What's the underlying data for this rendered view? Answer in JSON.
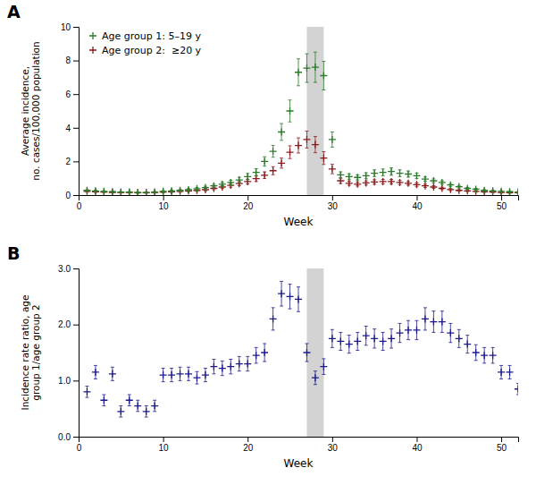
{
  "chart_data": [
    {
      "type": "scatter",
      "title": "A",
      "x_label": "Week",
      "y_label": "Average incidence,\nno. cases/100,000 population",
      "xlim": [
        0,
        52
      ],
      "xticks": [
        0,
        10,
        20,
        30,
        40,
        50
      ],
      "ylim": [
        0,
        10
      ],
      "yticks": [
        0,
        2,
        4,
        6,
        8,
        10
      ],
      "legend": "upper left",
      "span": {
        "x": [
          27,
          29
        ],
        "color": "#c8c8c8"
      },
      "x": [
        1,
        2,
        3,
        4,
        5,
        6,
        7,
        8,
        9,
        10,
        11,
        12,
        13,
        14,
        15,
        16,
        17,
        18,
        19,
        20,
        21,
        22,
        23,
        24,
        25,
        26,
        27,
        28,
        29,
        30,
        31,
        32,
        33,
        34,
        35,
        36,
        37,
        38,
        39,
        40,
        41,
        42,
        43,
        44,
        45,
        46,
        47,
        48,
        49,
        50,
        51,
        52
      ],
      "series": [
        {
          "name": "Age group 1: 5–19 y",
          "color": "#2a7a2a",
          "marker": "plus",
          "values": [
            0.28,
            0.25,
            0.22,
            0.2,
            0.18,
            0.18,
            0.15,
            0.15,
            0.18,
            0.22,
            0.25,
            0.28,
            0.32,
            0.38,
            0.45,
            0.55,
            0.65,
            0.75,
            0.9,
            1.1,
            1.35,
            2.0,
            2.6,
            3.75,
            5.0,
            7.3,
            7.55,
            7.6,
            7.1,
            3.3,
            1.2,
            1.1,
            1.05,
            1.15,
            1.3,
            1.35,
            1.4,
            1.3,
            1.25,
            1.15,
            0.95,
            0.85,
            0.75,
            0.6,
            0.5,
            0.4,
            0.35,
            0.28,
            0.25,
            0.22,
            0.2,
            0.18
          ],
          "errors": [
            0.04,
            0.04,
            0.04,
            0.04,
            0.03,
            0.03,
            0.03,
            0.03,
            0.04,
            0.04,
            0.05,
            0.05,
            0.06,
            0.07,
            0.08,
            0.09,
            0.11,
            0.13,
            0.15,
            0.18,
            0.22,
            0.28,
            0.35,
            0.5,
            0.65,
            0.8,
            0.85,
            0.9,
            0.85,
            0.45,
            0.18,
            0.16,
            0.15,
            0.18,
            0.2,
            0.2,
            0.22,
            0.2,
            0.18,
            0.16,
            0.13,
            0.11,
            0.1,
            0.08,
            0.07,
            0.06,
            0.05,
            0.04,
            0.04,
            0.04,
            0.03,
            0.03
          ]
        },
        {
          "name": "Age group 2:  ≥20 y",
          "color": "#8b1a1a",
          "marker": "plus",
          "values": [
            0.22,
            0.2,
            0.18,
            0.16,
            0.15,
            0.15,
            0.14,
            0.14,
            0.15,
            0.18,
            0.2,
            0.22,
            0.25,
            0.28,
            0.32,
            0.4,
            0.48,
            0.58,
            0.68,
            0.8,
            0.98,
            1.18,
            1.45,
            1.9,
            2.55,
            2.95,
            3.3,
            3.0,
            2.2,
            1.55,
            0.85,
            0.7,
            0.65,
            0.72,
            0.78,
            0.8,
            0.8,
            0.75,
            0.7,
            0.62,
            0.55,
            0.48,
            0.4,
            0.33,
            0.28,
            0.25,
            0.22,
            0.2,
            0.18,
            0.15,
            0.14,
            0.14
          ],
          "errors": [
            0.04,
            0.04,
            0.03,
            0.03,
            0.03,
            0.03,
            0.03,
            0.03,
            0.03,
            0.04,
            0.04,
            0.05,
            0.05,
            0.06,
            0.07,
            0.08,
            0.09,
            0.11,
            0.12,
            0.14,
            0.17,
            0.2,
            0.24,
            0.3,
            0.38,
            0.45,
            0.5,
            0.48,
            0.38,
            0.28,
            0.16,
            0.12,
            0.11,
            0.12,
            0.13,
            0.13,
            0.13,
            0.12,
            0.11,
            0.1,
            0.09,
            0.08,
            0.07,
            0.06,
            0.05,
            0.04,
            0.04,
            0.04,
            0.03,
            0.03,
            0.03,
            0.03
          ]
        }
      ]
    },
    {
      "type": "scatter",
      "title": "B",
      "x_label": "Week",
      "y_label": "Incidence rate ratio, age\ngroup 1/age group 2",
      "xlim": [
        0,
        52
      ],
      "xticks": [
        0,
        10,
        20,
        30,
        40,
        50
      ],
      "ylim": [
        0.0,
        3.0
      ],
      "yticks": [
        {
          "value": 0,
          "label": "0.0"
        },
        {
          "value": 1,
          "label": "1.0"
        },
        {
          "value": 2,
          "label": "2.0"
        },
        {
          "value": 3,
          "label": "3.0"
        }
      ],
      "span": {
        "x": [
          27,
          29
        ],
        "color": "#c8c8c8"
      },
      "x": [
        1,
        2,
        3,
        4,
        5,
        6,
        7,
        8,
        9,
        10,
        11,
        12,
        13,
        14,
        15,
        16,
        17,
        18,
        19,
        20,
        21,
        22,
        23,
        24,
        25,
        26,
        27,
        28,
        29,
        30,
        31,
        32,
        33,
        34,
        35,
        36,
        37,
        38,
        39,
        40,
        41,
        42,
        43,
        44,
        45,
        46,
        47,
        48,
        49,
        50,
        51,
        52
      ],
      "series": [
        {
          "color": "#1a1a8c",
          "marker": "plus",
          "values": [
            0.8,
            1.15,
            0.65,
            1.12,
            0.45,
            0.65,
            0.55,
            0.45,
            0.55,
            1.1,
            1.1,
            1.12,
            1.12,
            1.05,
            1.1,
            1.25,
            1.22,
            1.25,
            1.3,
            1.3,
            1.45,
            1.5,
            2.1,
            2.55,
            2.5,
            2.45,
            1.5,
            1.05,
            1.25,
            1.75,
            1.7,
            1.65,
            1.7,
            1.8,
            1.75,
            1.7,
            1.75,
            1.85,
            1.9,
            1.9,
            2.1,
            2.05,
            2.05,
            1.85,
            1.75,
            1.65,
            1.5,
            1.45,
            1.45,
            1.15,
            1.15,
            0.85
          ],
          "errors": [
            0.1,
            0.12,
            0.1,
            0.12,
            0.1,
            0.1,
            0.1,
            0.1,
            0.1,
            0.12,
            0.12,
            0.12,
            0.12,
            0.11,
            0.12,
            0.13,
            0.13,
            0.13,
            0.13,
            0.13,
            0.14,
            0.16,
            0.2,
            0.22,
            0.22,
            0.22,
            0.16,
            0.12,
            0.14,
            0.16,
            0.16,
            0.16,
            0.16,
            0.17,
            0.17,
            0.16,
            0.17,
            0.17,
            0.17,
            0.17,
            0.2,
            0.19,
            0.19,
            0.17,
            0.16,
            0.16,
            0.14,
            0.14,
            0.14,
            0.12,
            0.12,
            0.1
          ]
        }
      ]
    }
  ]
}
